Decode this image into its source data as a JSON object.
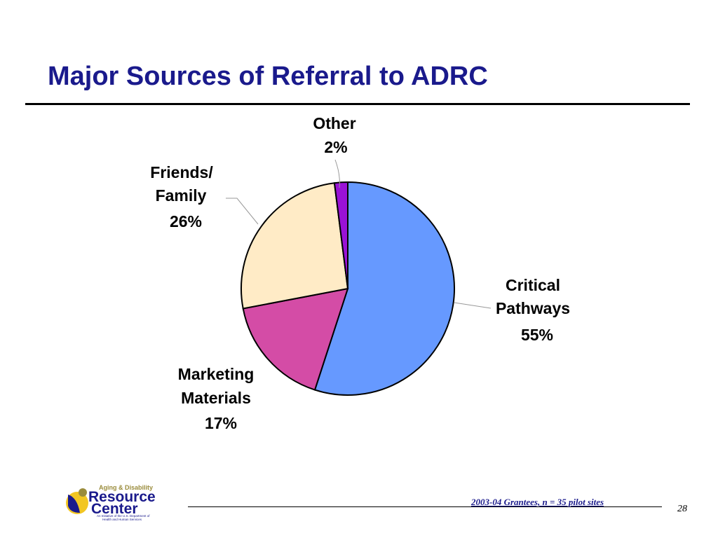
{
  "title": "Major Sources of Referral to ADRC",
  "chart_data": {
    "type": "pie",
    "slices": [
      {
        "label": [
          "Critical",
          "Pathways"
        ],
        "percent_label": "55%",
        "value": 55,
        "color": "#6699ff"
      },
      {
        "label": [
          "Marketing",
          "Materials"
        ],
        "percent_label": "17%",
        "value": 17,
        "color": "#d44ca6"
      },
      {
        "label": [
          "Friends/",
          "Family"
        ],
        "percent_label": "26%",
        "value": 26,
        "color": "#ffebc6"
      },
      {
        "label": [
          "Other"
        ],
        "percent_label": "2%",
        "value": 2,
        "color": "#9a12d6"
      }
    ],
    "start": "12 o'clock",
    "direction": "clockwise"
  },
  "footnote": "2003-04 Grantees, n = 35 pilot sites",
  "page_number": "28",
  "logo": {
    "line1": "Aging & Disability",
    "line2": "Resource",
    "line3": "Center",
    "tagline1": "An Initiative of the U.S. Department of",
    "tagline2": "Health and Human Services"
  }
}
